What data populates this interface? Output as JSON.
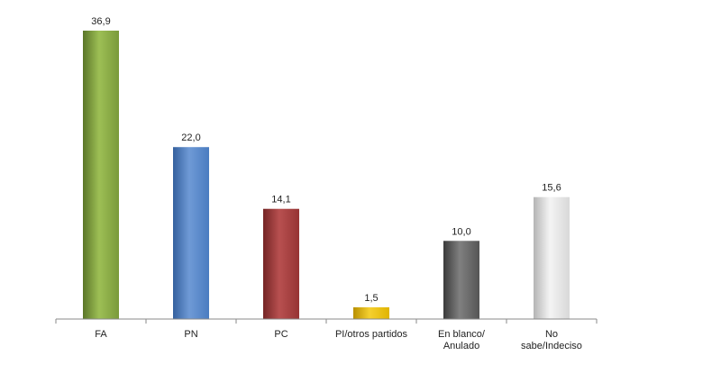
{
  "chart_data": {
    "type": "bar",
    "title": "",
    "xlabel": "",
    "ylabel": "",
    "ylim": [
      0,
      36.9
    ],
    "grid": false,
    "legend": "none",
    "categories": [
      [
        "FA"
      ],
      [
        "PN"
      ],
      [
        "PC"
      ],
      [
        "PI/otros partidos"
      ],
      [
        "En blanco/",
        "Anulado"
      ],
      [
        "No",
        "sabe/Indeciso"
      ]
    ],
    "values": [
      36.9,
      22.0,
      14.1,
      1.5,
      10.0,
      15.6
    ],
    "value_labels": [
      "36,9",
      "22,0",
      "14,1",
      "1,5",
      "10,0",
      "15,6"
    ],
    "colors": [
      {
        "base": "#7a9a3a",
        "light": "#9dbf55",
        "dark": "#5a7628"
      },
      {
        "base": "#4a7cc0",
        "light": "#6f9ad6",
        "dark": "#34609e"
      },
      {
        "base": "#963434",
        "light": "#b85050",
        "dark": "#742424"
      },
      {
        "base": "#e0b400",
        "light": "#f5d030",
        "dark": "#b88f00"
      },
      {
        "base": "#555555",
        "light": "#808080",
        "dark": "#3a3a3a"
      },
      {
        "base": "#d8d8d8",
        "light": "#f4f4f4",
        "dark": "#b4b4b4"
      }
    ]
  }
}
